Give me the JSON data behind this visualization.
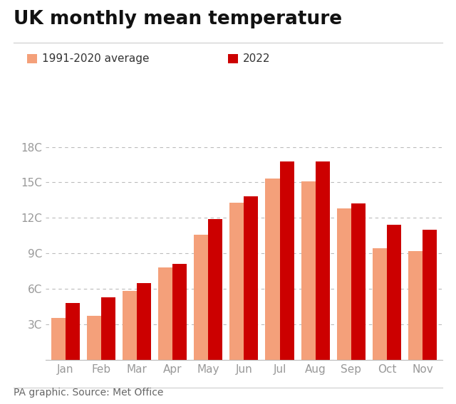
{
  "title": "UK monthly mean temperature",
  "months": [
    "Jan",
    "Feb",
    "Mar",
    "Apr",
    "May",
    "Jun",
    "Jul",
    "Aug",
    "Sep",
    "Oct",
    "Nov"
  ],
  "avg_values": [
    3.5,
    3.7,
    5.8,
    7.8,
    10.6,
    13.3,
    15.3,
    15.1,
    12.8,
    9.4,
    9.2
  ],
  "val_2022": [
    4.8,
    5.3,
    6.5,
    8.1,
    11.9,
    13.8,
    16.8,
    16.8,
    13.2,
    11.4,
    11.0
  ],
  "avg_color": "#F4A07A",
  "val_color": "#CC0000",
  "yticks": [
    0,
    3,
    6,
    9,
    12,
    15,
    18
  ],
  "ytick_labels": [
    "",
    "3C",
    "6C",
    "9C",
    "12C",
    "15C",
    "18C"
  ],
  "ylim": [
    0,
    19.5
  ],
  "legend_avg_label": "1991-2020 average",
  "legend_2022_label": "2022",
  "footer": "PA graphic. Source: Met Office",
  "background_color": "#FFFFFF",
  "grid_color": "#BBBBBB",
  "bar_width": 0.4,
  "title_fontsize": 19,
  "label_fontsize": 11,
  "footer_fontsize": 10
}
